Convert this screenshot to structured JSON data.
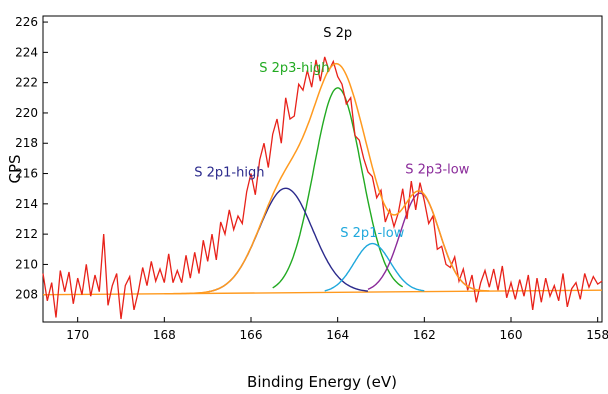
{
  "chart_data": {
    "type": "line",
    "title": "",
    "xlabel": "Binding Energy (eV)",
    "ylabel": "CPS",
    "xlim": [
      170.8,
      157.9
    ],
    "ylim": [
      206.2,
      226.4
    ],
    "x_reversed": true,
    "x_ticks": [
      170,
      168,
      166,
      164,
      162,
      160,
      158
    ],
    "y_ticks": [
      208,
      210,
      212,
      214,
      216,
      218,
      220,
      222,
      224,
      226
    ],
    "grid": false,
    "legend": "none",
    "annotations": [
      {
        "text": "S 2p",
        "x": 164.0,
        "y": 225.0,
        "color": "#000000"
      },
      {
        "text": "S 2p3-high",
        "x": 165.0,
        "y": 222.7,
        "color": "#22aa22"
      },
      {
        "text": "S 2p1-high",
        "x": 166.5,
        "y": 215.8,
        "color": "#2b2a8c"
      },
      {
        "text": "S 2p1-low",
        "x": 163.2,
        "y": 211.8,
        "color": "#1fa8dc"
      },
      {
        "text": "S 2p3-low",
        "x": 161.7,
        "y": 216.0,
        "color": "#8a2b9a"
      }
    ],
    "baseline": {
      "x": [
        170.8,
        157.9
      ],
      "y": [
        208.0,
        208.3
      ],
      "color": "#ff9a1f"
    },
    "components": [
      {
        "label": "S 2p3-high",
        "center": 164.0,
        "height": 13.5,
        "sigma": 0.55,
        "xrange": [
          165.5,
          162.5
        ],
        "color": "#22aa22"
      },
      {
        "label": "S 2p1-high",
        "center": 165.2,
        "height": 6.9,
        "sigma": 0.62,
        "xrange": [
          167.0,
          163.3
        ],
        "color": "#2b2a8c"
      },
      {
        "label": "S 2p1-low",
        "center": 163.2,
        "height": 3.2,
        "sigma": 0.42,
        "xrange": [
          164.3,
          162.0
        ],
        "color": "#1fa8dc"
      },
      {
        "label": "S 2p3-low",
        "center": 162.1,
        "height": 6.5,
        "sigma": 0.45,
        "xrange": [
          163.3,
          160.8
        ],
        "color": "#8a2b9a"
      }
    ],
    "envelope": {
      "color": "#ff9a1f",
      "xrange": [
        168.0,
        160.5
      ]
    },
    "data_series": {
      "color": "#e8221a",
      "x": [
        170.8,
        170.7,
        170.6,
        170.5,
        170.4,
        170.3,
        170.2,
        170.1,
        170.0,
        169.9,
        169.8,
        169.7,
        169.6,
        169.5,
        169.4,
        169.3,
        169.2,
        169.1,
        169.0,
        168.9,
        168.8,
        168.7,
        168.6,
        168.5,
        168.4,
        168.3,
        168.2,
        168.1,
        168.0,
        167.9,
        167.8,
        167.7,
        167.6,
        167.5,
        167.4,
        167.3,
        167.2,
        167.1,
        167.0,
        166.9,
        166.8,
        166.7,
        166.6,
        166.5,
        166.4,
        166.3,
        166.2,
        166.1,
        166.0,
        165.9,
        165.8,
        165.7,
        165.6,
        165.5,
        165.4,
        165.3,
        165.2,
        165.1,
        165.0,
        164.9,
        164.8,
        164.7,
        164.6,
        164.5,
        164.4,
        164.3,
        164.2,
        164.1,
        164.0,
        163.9,
        163.8,
        163.7,
        163.6,
        163.5,
        163.4,
        163.3,
        163.2,
        163.1,
        163.0,
        162.9,
        162.8,
        162.7,
        162.6,
        162.5,
        162.4,
        162.3,
        162.2,
        162.1,
        162.0,
        161.9,
        161.8,
        161.7,
        161.6,
        161.5,
        161.4,
        161.3,
        161.2,
        161.1,
        161.0,
        160.9,
        160.8,
        160.7,
        160.6,
        160.5,
        160.4,
        160.3,
        160.2,
        160.1,
        160.0,
        159.9,
        159.8,
        159.7,
        159.6,
        159.5,
        159.4,
        159.3,
        159.2,
        159.1,
        159.0,
        158.9,
        158.8,
        158.7,
        158.6,
        158.5,
        158.4,
        158.3,
        158.2,
        158.1,
        158.0,
        157.9
      ],
      "y": [
        209.4,
        207.6,
        208.8,
        206.5,
        209.6,
        208.2,
        209.5,
        207.4,
        209.1,
        208.0,
        210.0,
        207.9,
        209.3,
        208.2,
        212.0,
        207.3,
        208.6,
        209.4,
        206.4,
        208.6,
        209.2,
        207.0,
        208.2,
        209.8,
        208.6,
        210.2,
        208.9,
        209.7,
        208.8,
        210.7,
        208.8,
        209.6,
        208.8,
        210.6,
        209.1,
        210.8,
        209.4,
        211.6,
        210.2,
        212.0,
        210.3,
        212.8,
        212.0,
        213.6,
        212.3,
        213.2,
        212.7,
        214.8,
        216.0,
        214.6,
        216.9,
        218.0,
        216.4,
        218.6,
        219.6,
        218.0,
        221.0,
        219.6,
        219.8,
        221.9,
        221.5,
        222.8,
        221.7,
        223.5,
        222.1,
        223.7,
        222.8,
        223.4,
        222.4,
        221.9,
        220.6,
        221.0,
        218.5,
        218.2,
        217.0,
        216.1,
        215.8,
        214.4,
        214.9,
        212.8,
        213.6,
        212.5,
        213.4,
        215.0,
        213.0,
        215.5,
        213.6,
        215.4,
        214.2,
        212.7,
        213.2,
        211.0,
        211.2,
        210.0,
        209.8,
        210.5,
        208.9,
        209.7,
        208.3,
        209.3,
        207.5,
        208.8,
        209.6,
        208.5,
        209.7,
        208.3,
        209.9,
        207.8,
        208.8,
        207.7,
        209.0,
        207.9,
        209.3,
        207.0,
        209.1,
        207.5,
        209.1,
        207.9,
        208.6,
        207.6,
        209.4,
        207.2,
        208.4,
        208.8,
        207.7,
        209.4,
        208.5,
        209.2,
        208.7,
        208.9
      ]
    }
  }
}
